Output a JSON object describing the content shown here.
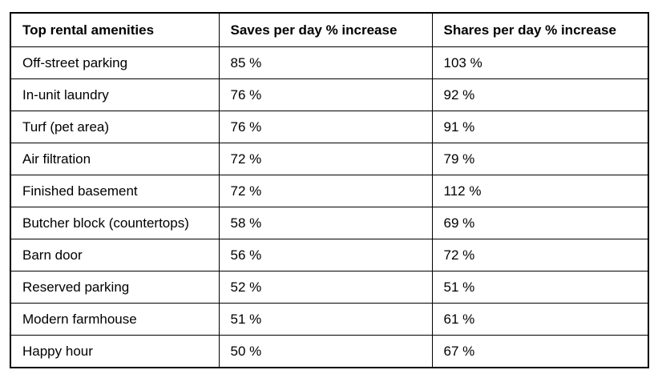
{
  "table": {
    "columns": [
      {
        "label": "Top rental amenities"
      },
      {
        "label": "Saves per day % increase"
      },
      {
        "label": "Shares per day % increase"
      }
    ],
    "rows": [
      {
        "amenity": "Off-street parking",
        "saves": "85 %",
        "shares": "103 %"
      },
      {
        "amenity": "In-unit laundry",
        "saves": "76 %",
        "shares": "92 %"
      },
      {
        "amenity": "Turf (pet area)",
        "saves": "76 %",
        "shares": "91 %"
      },
      {
        "amenity": "Air filtration",
        "saves": "72 %",
        "shares": "79 %"
      },
      {
        "amenity": "Finished basement",
        "saves": "72 %",
        "shares": "112 %"
      },
      {
        "amenity": "Butcher block (countertops)",
        "saves": "58 %",
        "shares": "69 %"
      },
      {
        "amenity": "Barn door",
        "saves": "56 %",
        "shares": "72 %"
      },
      {
        "amenity": "Reserved parking",
        "saves": "52 %",
        "shares": "51 %"
      },
      {
        "amenity": "Modern farmhouse",
        "saves": "51 %",
        "shares": "61 %"
      },
      {
        "amenity": "Happy hour",
        "saves": "50 %",
        "shares": "67 %"
      }
    ],
    "colors": {
      "border": "#000000",
      "text": "#000000",
      "background": "#ffffff"
    }
  },
  "chart_data": {
    "type": "table",
    "title": "Top rental amenities",
    "categories": [
      "Off-street parking",
      "In-unit laundry",
      "Turf (pet area)",
      "Air filtration",
      "Finished basement",
      "Butcher block (countertops)",
      "Barn door",
      "Reserved parking",
      "Modern farmhouse",
      "Happy hour"
    ],
    "series": [
      {
        "name": "Saves per day % increase",
        "values": [
          85,
          76,
          76,
          72,
          72,
          58,
          56,
          52,
          51,
          50
        ]
      },
      {
        "name": "Shares per day % increase",
        "values": [
          103,
          92,
          91,
          79,
          112,
          69,
          72,
          51,
          61,
          67
        ]
      }
    ],
    "value_unit": "%"
  }
}
